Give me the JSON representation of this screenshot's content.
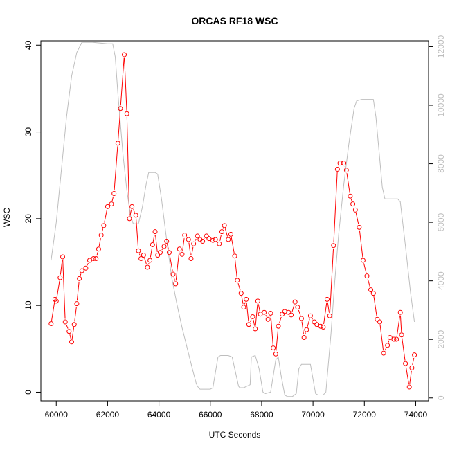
{
  "chart_data": {
    "type": "line",
    "title": "ORCAS RF18 WSC",
    "xlabel": "UTC Seconds",
    "ylabel": "WSC",
    "xlim": [
      59400,
      74500
    ],
    "ylim": [
      -1,
      40.5
    ],
    "y2lim": [
      -100,
      12200
    ],
    "x_ticks": [
      60000,
      62000,
      64000,
      66000,
      68000,
      70000,
      72000,
      74000
    ],
    "x_tick_labels": [
      "60000",
      "62000",
      "64000",
      "66000",
      "68000",
      "70000",
      "72000",
      "74000"
    ],
    "y_ticks": [
      0,
      10,
      20,
      30,
      40
    ],
    "y_tick_labels": [
      "0",
      "10",
      "20",
      "30",
      "40"
    ],
    "y2_ticks": [
      0,
      2000,
      4000,
      6000,
      8000,
      10000,
      12000
    ],
    "y2_tick_labels": [
      "0",
      "2000",
      "4000",
      "6000",
      "8000",
      "10000",
      "12000"
    ],
    "grid": false,
    "legend": "none",
    "series": [
      {
        "axis": "left",
        "style": "line+open-circles",
        "color": "#ff0000",
        "points": [
          [
            59800,
            7.9
          ],
          [
            59950,
            10.7
          ],
          [
            60000,
            10.5
          ],
          [
            60150,
            13.2
          ],
          [
            60250,
            15.6
          ],
          [
            60350,
            8.1
          ],
          [
            60500,
            7.0
          ],
          [
            60600,
            5.8
          ],
          [
            60700,
            7.8
          ],
          [
            60800,
            10.2
          ],
          [
            60900,
            13.1
          ],
          [
            61000,
            14.0
          ],
          [
            61150,
            14.3
          ],
          [
            61300,
            15.2
          ],
          [
            61450,
            15.4
          ],
          [
            61550,
            15.4
          ],
          [
            61650,
            16.5
          ],
          [
            61750,
            18.1
          ],
          [
            61850,
            19.2
          ],
          [
            62000,
            21.4
          ],
          [
            62150,
            21.7
          ],
          [
            62250,
            22.9
          ],
          [
            62400,
            28.7
          ],
          [
            62500,
            32.7
          ],
          [
            62650,
            38.9
          ],
          [
            62750,
            32.1
          ],
          [
            62850,
            20.0
          ],
          [
            62950,
            21.4
          ],
          [
            63100,
            20.4
          ],
          [
            63200,
            16.3
          ],
          [
            63300,
            15.4
          ],
          [
            63400,
            15.8
          ],
          [
            63550,
            14.4
          ],
          [
            63650,
            15.2
          ],
          [
            63750,
            17.0
          ],
          [
            63850,
            18.5
          ],
          [
            63950,
            15.8
          ],
          [
            64050,
            16.1
          ],
          [
            64200,
            16.8
          ],
          [
            64300,
            17.4
          ],
          [
            64400,
            16.1
          ],
          [
            64550,
            13.6
          ],
          [
            64650,
            12.5
          ],
          [
            64800,
            16.5
          ],
          [
            64900,
            15.9
          ],
          [
            65000,
            18.1
          ],
          [
            65150,
            17.6
          ],
          [
            65250,
            15.4
          ],
          [
            65350,
            17.1
          ],
          [
            65500,
            18.0
          ],
          [
            65600,
            17.6
          ],
          [
            65700,
            17.4
          ],
          [
            65850,
            18.0
          ],
          [
            65950,
            17.7
          ],
          [
            66100,
            17.5
          ],
          [
            66200,
            17.6
          ],
          [
            66350,
            17.1
          ],
          [
            66450,
            18.5
          ],
          [
            66550,
            19.2
          ],
          [
            66700,
            17.6
          ],
          [
            66800,
            18.2
          ],
          [
            66950,
            15.7
          ],
          [
            67050,
            12.9
          ],
          [
            67200,
            11.4
          ],
          [
            67300,
            9.8
          ],
          [
            67400,
            10.7
          ],
          [
            67500,
            7.8
          ],
          [
            67650,
            8.7
          ],
          [
            67750,
            7.3
          ],
          [
            67850,
            10.5
          ],
          [
            67950,
            9.0
          ],
          [
            68100,
            9.2
          ],
          [
            68250,
            8.4
          ],
          [
            68350,
            9.1
          ],
          [
            68450,
            5.1
          ],
          [
            68550,
            4.4
          ],
          [
            68650,
            7.6
          ],
          [
            68800,
            9.0
          ],
          [
            68900,
            9.3
          ],
          [
            69050,
            9.2
          ],
          [
            69150,
            8.9
          ],
          [
            69300,
            10.4
          ],
          [
            69400,
            9.8
          ],
          [
            69550,
            8.5
          ],
          [
            69650,
            6.3
          ],
          [
            69750,
            7.2
          ],
          [
            69900,
            8.8
          ],
          [
            70050,
            8.1
          ],
          [
            70150,
            7.8
          ],
          [
            70300,
            7.6
          ],
          [
            70400,
            7.5
          ],
          [
            70550,
            10.7
          ],
          [
            70650,
            8.8
          ],
          [
            70800,
            16.9
          ],
          [
            70950,
            25.7
          ],
          [
            71050,
            26.4
          ],
          [
            71200,
            26.4
          ],
          [
            71300,
            25.6
          ],
          [
            71450,
            22.6
          ],
          [
            71550,
            21.7
          ],
          [
            71650,
            21.0
          ],
          [
            71800,
            19.0
          ],
          [
            71950,
            15.2
          ],
          [
            72100,
            13.4
          ],
          [
            72250,
            11.8
          ],
          [
            72350,
            11.4
          ],
          [
            72500,
            8.4
          ],
          [
            72600,
            8.1
          ],
          [
            72750,
            4.5
          ],
          [
            72900,
            5.4
          ],
          [
            73000,
            6.3
          ],
          [
            73150,
            6.1
          ],
          [
            73250,
            6.1
          ],
          [
            73400,
            9.2
          ],
          [
            73450,
            6.6
          ],
          [
            73600,
            3.3
          ],
          [
            73750,
            0.6
          ],
          [
            73850,
            2.8
          ],
          [
            73950,
            4.3
          ]
        ]
      },
      {
        "axis": "right",
        "style": "line",
        "color": "#bebebe",
        "points": [
          [
            59800,
            4700
          ],
          [
            60000,
            6000
          ],
          [
            60200,
            7800
          ],
          [
            60400,
            9600
          ],
          [
            60600,
            11000
          ],
          [
            60800,
            11800
          ],
          [
            61000,
            12150
          ],
          [
            61400,
            12150
          ],
          [
            62000,
            12100
          ],
          [
            62200,
            12100
          ],
          [
            62300,
            11650
          ],
          [
            62400,
            10400
          ],
          [
            62600,
            8300
          ],
          [
            62750,
            7100
          ],
          [
            62900,
            6200
          ],
          [
            63000,
            5950
          ],
          [
            63200,
            5950
          ],
          [
            63350,
            6500
          ],
          [
            63500,
            7300
          ],
          [
            63600,
            7700
          ],
          [
            63850,
            7700
          ],
          [
            63950,
            7650
          ],
          [
            64100,
            6800
          ],
          [
            64300,
            5400
          ],
          [
            64500,
            4100
          ],
          [
            64700,
            3200
          ],
          [
            64900,
            2400
          ],
          [
            65100,
            1700
          ],
          [
            65300,
            1000
          ],
          [
            65450,
            500
          ],
          [
            65500,
            400
          ],
          [
            65600,
            300
          ],
          [
            66000,
            300
          ],
          [
            66100,
            350
          ],
          [
            66300,
            1400
          ],
          [
            66400,
            1450
          ],
          [
            66700,
            1450
          ],
          [
            66850,
            1400
          ],
          [
            67100,
            400
          ],
          [
            67150,
            350
          ],
          [
            67300,
            350
          ],
          [
            67550,
            450
          ],
          [
            67600,
            1400
          ],
          [
            67750,
            1450
          ],
          [
            67900,
            1000
          ],
          [
            68050,
            200
          ],
          [
            68150,
            150
          ],
          [
            68350,
            200
          ],
          [
            68550,
            1300
          ],
          [
            68650,
            1400
          ],
          [
            68750,
            800
          ],
          [
            68900,
            100
          ],
          [
            69000,
            50
          ],
          [
            69200,
            50
          ],
          [
            69350,
            150
          ],
          [
            69450,
            1000
          ],
          [
            69550,
            1150
          ],
          [
            69900,
            1150
          ],
          [
            70100,
            150
          ],
          [
            70200,
            100
          ],
          [
            70400,
            100
          ],
          [
            70500,
            200
          ],
          [
            70700,
            2200
          ],
          [
            70850,
            4000
          ],
          [
            71000,
            5600
          ],
          [
            71200,
            7300
          ],
          [
            71400,
            8700
          ],
          [
            71600,
            9900
          ],
          [
            71700,
            10150
          ],
          [
            71900,
            10200
          ],
          [
            72350,
            10200
          ],
          [
            72450,
            9600
          ],
          [
            72700,
            7200
          ],
          [
            72800,
            6800
          ],
          [
            73300,
            6800
          ],
          [
            73400,
            6700
          ],
          [
            73600,
            5200
          ],
          [
            73800,
            3600
          ],
          [
            73950,
            2600
          ]
        ]
      }
    ]
  }
}
